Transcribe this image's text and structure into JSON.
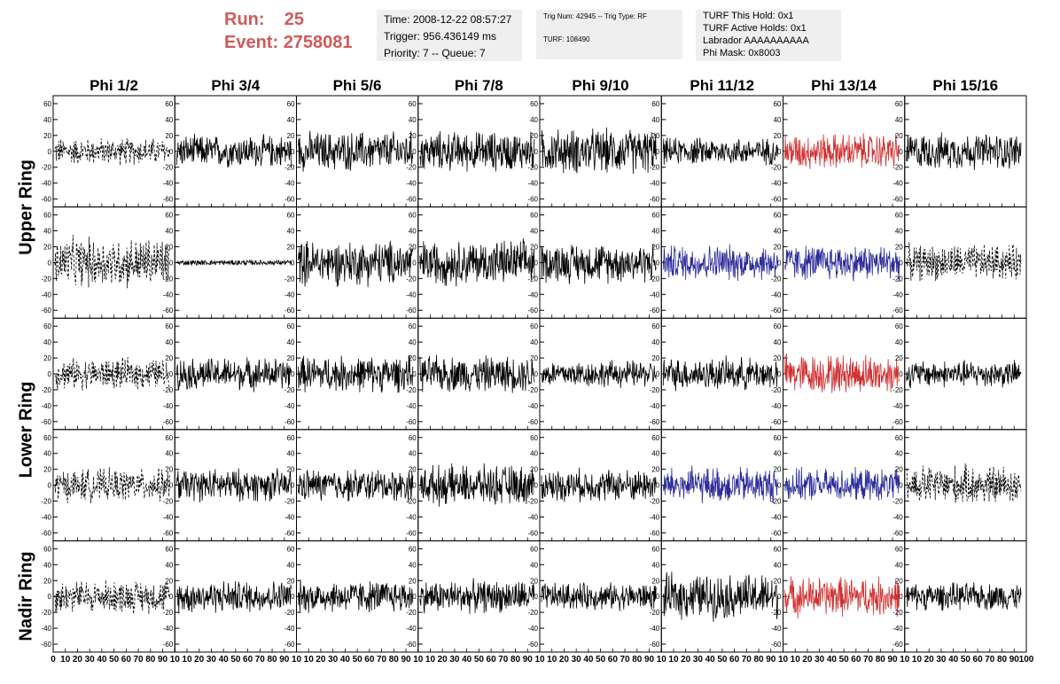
{
  "run_info": {
    "run_label": "Run:",
    "run_value": "25",
    "event_label": "Event:",
    "event_value": "2758081"
  },
  "time_box": {
    "time": "Time: 2008-12-22 08:57:27",
    "trigger": "Trigger: 956.436149 ms",
    "priority": "Priority: 7 -- Queue: 7"
  },
  "trig_box": {
    "trig": "Trig Num: 42945 -- Trig Type: RF",
    "turf": "TURF: 108490"
  },
  "turf_box": {
    "this_hold": "TURF This Hold: 0x1",
    "active_holds": "TURF Active Holds: 0x1",
    "labrador": "Labrador AAAAAAAAAA",
    "phi_mask": "Phi Mask: 0x8003"
  },
  "chart_data": {
    "type": "line",
    "column_titles": [
      "Phi 1/2",
      "Phi 3/4",
      "Phi 5/6",
      "Phi 7/8",
      "Phi 9/10",
      "Phi 11/12",
      "Phi 13/14",
      "Phi 15/16"
    ],
    "row_titles": [
      "Upper Ring",
      "Upper Ring",
      "Lower Ring",
      "Lower Ring",
      "Nadir Ring"
    ],
    "xlim": [
      0,
      100
    ],
    "ylim": [
      -70,
      70
    ],
    "y_ticks": [
      -60,
      -40,
      -20,
      0,
      20,
      40,
      60
    ],
    "x_tick_labels": [
      "0",
      "10",
      "20",
      "30",
      "40",
      "50",
      "60",
      "70",
      "80",
      "90",
      "10",
      "10",
      "20",
      "30",
      "40",
      "50",
      "60",
      "70",
      "80",
      "90",
      "10",
      "10",
      "20",
      "30",
      "40",
      "50",
      "60",
      "70",
      "80",
      "90",
      "10",
      "10",
      "20",
      "30",
      "40",
      "50",
      "60",
      "70",
      "80",
      "90",
      "10",
      "10",
      "20",
      "30",
      "40",
      "50",
      "60",
      "70",
      "80",
      "90",
      "10",
      "10",
      "20",
      "30",
      "40",
      "50",
      "60",
      "70",
      "80",
      "90",
      "10",
      "10",
      "20",
      "30",
      "40",
      "50",
      "60",
      "70",
      "80",
      "90",
      "10",
      "10",
      "20",
      "30",
      "40",
      "50",
      "60",
      "70",
      "80",
      "90",
      "100"
    ],
    "series_styles": [
      [
        "dashed",
        "solid",
        "solid",
        "solid",
        "solid",
        "solid",
        "red",
        "solid"
      ],
      [
        "dashed",
        "flat",
        "solid",
        "solid",
        "solid",
        "blue",
        "blue",
        "dashed"
      ],
      [
        "dashed",
        "solid",
        "solid",
        "solid",
        "solid",
        "solid",
        "red",
        "solid"
      ],
      [
        "dashed",
        "solid",
        "solid",
        "solid",
        "solid",
        "blue",
        "blue",
        "dashed"
      ],
      [
        "dashed",
        "solid",
        "solid",
        "solid",
        "solid",
        "solid",
        "red",
        "solid"
      ]
    ],
    "amplitudes": [
      [
        15,
        18,
        22,
        22,
        25,
        15,
        20,
        20
      ],
      [
        28,
        3,
        25,
        25,
        22,
        20,
        20,
        20
      ],
      [
        17,
        18,
        20,
        20,
        15,
        18,
        22,
        15
      ],
      [
        18,
        18,
        18,
        22,
        18,
        20,
        18,
        22
      ],
      [
        18,
        18,
        18,
        18,
        15,
        25,
        22,
        15
      ]
    ],
    "colors": {
      "solid": "#000000",
      "red": "#d03030",
      "blue": "#2a2a9a"
    }
  }
}
